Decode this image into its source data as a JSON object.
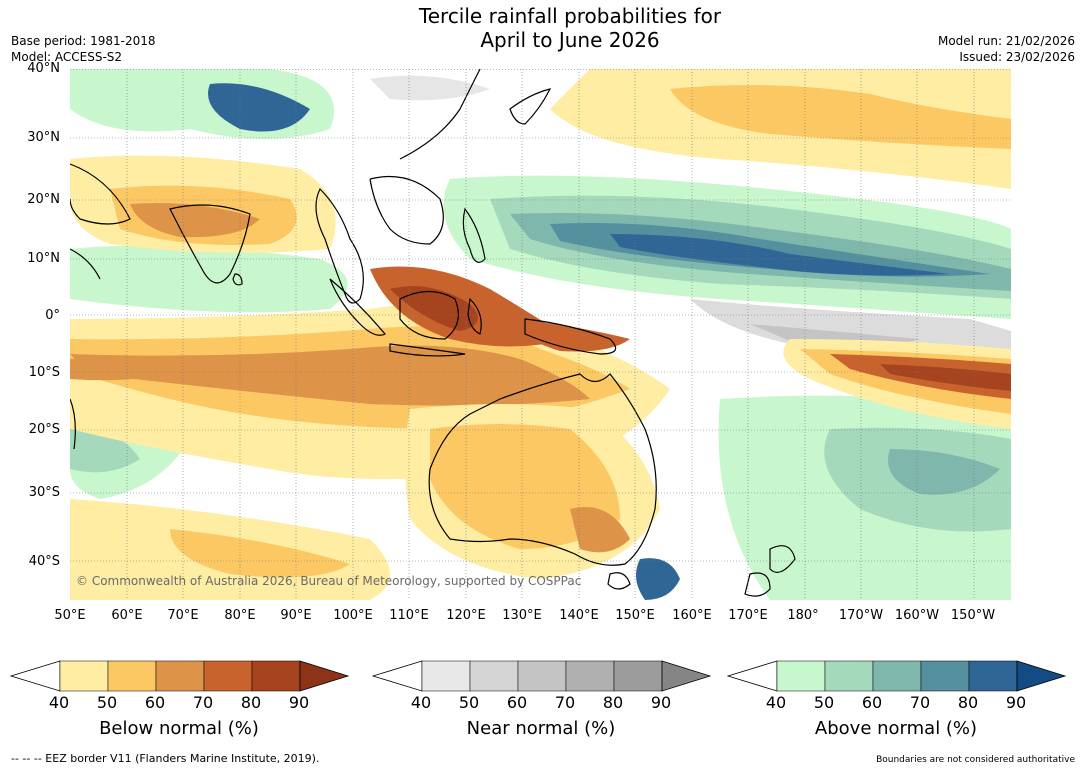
{
  "title": {
    "line1": "Tercile rainfall probabilities for",
    "line2": "April to June 2026"
  },
  "meta_left": {
    "base_period": "Base period: 1981-2018",
    "model": "Model: ACCESS-S2"
  },
  "meta_right": {
    "model_run": "Model run: 21/02/2026",
    "issued": "Issued: 23/02/2026"
  },
  "map": {
    "lat_labels": [
      "40°N",
      "30°N",
      "20°N",
      "10°N",
      "0°",
      "10°S",
      "20°S",
      "30°S",
      "40°S"
    ],
    "lon_labels": [
      "50°E",
      "60°E",
      "70°E",
      "80°E",
      "90°E",
      "100°E",
      "110°E",
      "120°E",
      "130°E",
      "140°E",
      "150°E",
      "160°E",
      "170°E",
      "180°",
      "170°W",
      "160°W",
      "150°W"
    ],
    "copyright": "© Commonwealth of Australia 2026, Bureau of Meteorology, supported by COSPPac"
  },
  "colorbars": [
    {
      "label": "Below normal (%)",
      "ticks": [
        "40",
        "50",
        "60",
        "70",
        "80",
        "90"
      ],
      "colors": [
        "#ffffff",
        "#feeda3",
        "#fbc864",
        "#de9448",
        "#c8632e",
        "#a5441f",
        "#8c3318"
      ]
    },
    {
      "label": "Near normal (%)",
      "ticks": [
        "40",
        "50",
        "60",
        "70",
        "80",
        "90"
      ],
      "colors": [
        "#ffffff",
        "#e8e8e8",
        "#d5d5d5",
        "#c4c4c4",
        "#b0b0b0",
        "#9c9c9c",
        "#858585"
      ]
    },
    {
      "label": "Above normal (%)",
      "ticks": [
        "40",
        "50",
        "60",
        "70",
        "80",
        "90"
      ],
      "colors": [
        "#ffffff",
        "#c9f7cd",
        "#a5d9bb",
        "#80b7ad",
        "#55909f",
        "#306696",
        "#134c85"
      ]
    }
  ],
  "footer": {
    "eez": "--  --  -- EEZ border V11 (Flanders Marine Institute, 2019).",
    "disclaimer": "Boundaries are not considered authoritative"
  }
}
